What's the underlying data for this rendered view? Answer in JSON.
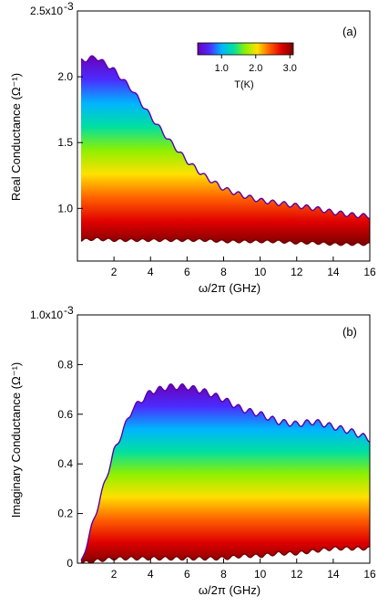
{
  "colorbar": {
    "ticks": [
      "1.0",
      "2.0",
      "3.0"
    ],
    "tick_values": [
      1.0,
      2.0,
      3.0
    ],
    "range": [
      0.3,
      3.1
    ],
    "label": "T(K)",
    "colors": [
      "#6a00b8",
      "#4b2cff",
      "#00b4ff",
      "#00e0a0",
      "#90f000",
      "#ffe000",
      "#ff6000",
      "#e00000",
      "#7a0000"
    ]
  },
  "chart_data": [
    {
      "type": "area",
      "panel": "(a)",
      "xlabel": "ω/2π (GHz)",
      "ylabel": "Real Conductance (Ω⁻¹)",
      "xlim": [
        0,
        16
      ],
      "ylim": [
        0.0006,
        0.0025
      ],
      "xticks": [
        2,
        4,
        6,
        8,
        10,
        12,
        14,
        16
      ],
      "yticks": [
        {
          "value": 0.001,
          "label": "1.0"
        },
        {
          "value": 0.0015,
          "label": "1.5"
        },
        {
          "value": 0.002,
          "label": "2.0"
        },
        {
          "value": 0.0025,
          "label": "2.5x10"
        }
      ],
      "y_exponent": "-3",
      "legend": "colorbar, top-right",
      "series": [
        {
          "temperature_K": 0.3,
          "x": [
            0.2,
            1,
            2,
            3,
            4,
            5,
            6,
            7,
            8,
            9,
            10,
            11,
            12,
            13,
            14,
            15,
            16
          ],
          "y": [
            0.00212,
            0.00215,
            0.00205,
            0.0019,
            0.0017,
            0.00152,
            0.00136,
            0.00124,
            0.00115,
            0.0011,
            0.00106,
            0.00104,
            0.00102,
            0.001,
            0.00097,
            0.00095,
            0.00094
          ]
        },
        {
          "temperature_K": 3.0,
          "x": [
            0.2,
            1,
            2,
            3,
            4,
            5,
            6,
            7,
            8,
            9,
            10,
            11,
            12,
            13,
            14,
            15,
            16
          ],
          "y": [
            0.00076,
            0.00077,
            0.00076,
            0.00076,
            0.00076,
            0.00076,
            0.00076,
            0.00076,
            0.00075,
            0.00075,
            0.00075,
            0.00075,
            0.00074,
            0.00074,
            0.00073,
            0.00073,
            0.00073
          ]
        }
      ]
    },
    {
      "type": "area",
      "panel": "(b)",
      "xlabel": "ω/2π (GHz)",
      "ylabel": "Imaginary Conductance (Ω⁻¹)",
      "xlim": [
        0,
        16
      ],
      "ylim": [
        0,
        0.001
      ],
      "xticks": [
        2,
        4,
        6,
        8,
        10,
        12,
        14,
        16
      ],
      "yticks": [
        {
          "value": 0,
          "label": "0"
        },
        {
          "value": 0.0002,
          "label": "0.2"
        },
        {
          "value": 0.0004,
          "label": "0.4"
        },
        {
          "value": 0.0006,
          "label": "0.6"
        },
        {
          "value": 0.0008,
          "label": "0.8"
        },
        {
          "value": 0.001,
          "label": "1.0x10"
        }
      ],
      "y_exponent": "-3",
      "series": [
        {
          "temperature_K": 0.3,
          "x": [
            0.2,
            1,
            2,
            3,
            4,
            5,
            6,
            7,
            8,
            9,
            10,
            11,
            12,
            13,
            14,
            15,
            16
          ],
          "y": [
            0.0,
            0.0002,
            0.00045,
            0.00062,
            0.00069,
            0.00071,
            0.00071,
            0.00069,
            0.00066,
            0.00062,
            0.0006,
            0.00057,
            0.00056,
            0.00057,
            0.00055,
            0.00053,
            0.0005
          ]
        },
        {
          "temperature_K": 3.0,
          "x": [
            0.2,
            1,
            2,
            3,
            4,
            5,
            6,
            7,
            8,
            9,
            10,
            11,
            12,
            13,
            14,
            15,
            16
          ],
          "y": [
            0.0,
            1e-05,
            2e-05,
            2e-05,
            2e-05,
            2e-05,
            2e-05,
            2e-05,
            2e-05,
            3e-05,
            3e-05,
            4e-05,
            4e-05,
            5e-05,
            6e-05,
            6e-05,
            6e-05
          ]
        }
      ]
    }
  ]
}
